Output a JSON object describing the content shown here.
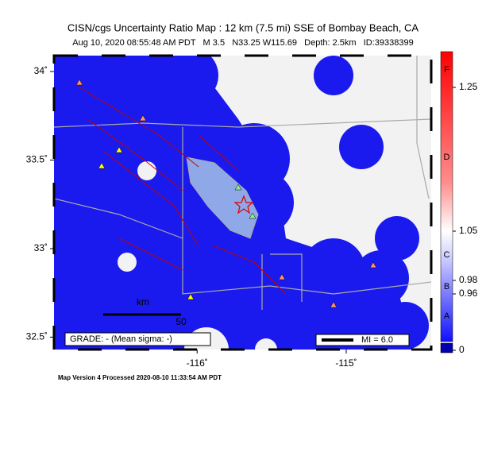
{
  "map": {
    "title": "CISN/cgs Uncertainty Ratio Map : 12 km (7.5 mi) SSE of Bombay Beach, CA",
    "subtitle": "Aug 10, 2020 08:55:48 AM PDT   M 3.5   N33.25 W115.69   Depth: 2.5km   ID:39338399",
    "xlim": [
      -116.96,
      -114.43
    ],
    "ylim": [
      32.43,
      34.09
    ],
    "xticks": [
      {
        "value": -116,
        "label": "-116˚"
      },
      {
        "value": -115,
        "label": "-115˚"
      }
    ],
    "yticks": [
      {
        "value": 34,
        "label": "34˚"
      },
      {
        "value": 33.5,
        "label": "33.5˚"
      },
      {
        "value": 33,
        "label": "33˚"
      },
      {
        "value": 32.5,
        "label": "32.5˚"
      }
    ],
    "scale_unit": "km",
    "scale_label": "50",
    "grade": "GRADE: - (Mean sigma: -)",
    "mi_legend": "MI = 6.0",
    "colorbar_labels": [
      1.25,
      1.05,
      0.98,
      0.96,
      0
    ],
    "colorbar_grades": [
      "F",
      "D",
      "C",
      "B",
      "A"
    ],
    "footer": "Map Version 4 Processed 2020-08-10 11:33:54 AM PDT"
  }
}
